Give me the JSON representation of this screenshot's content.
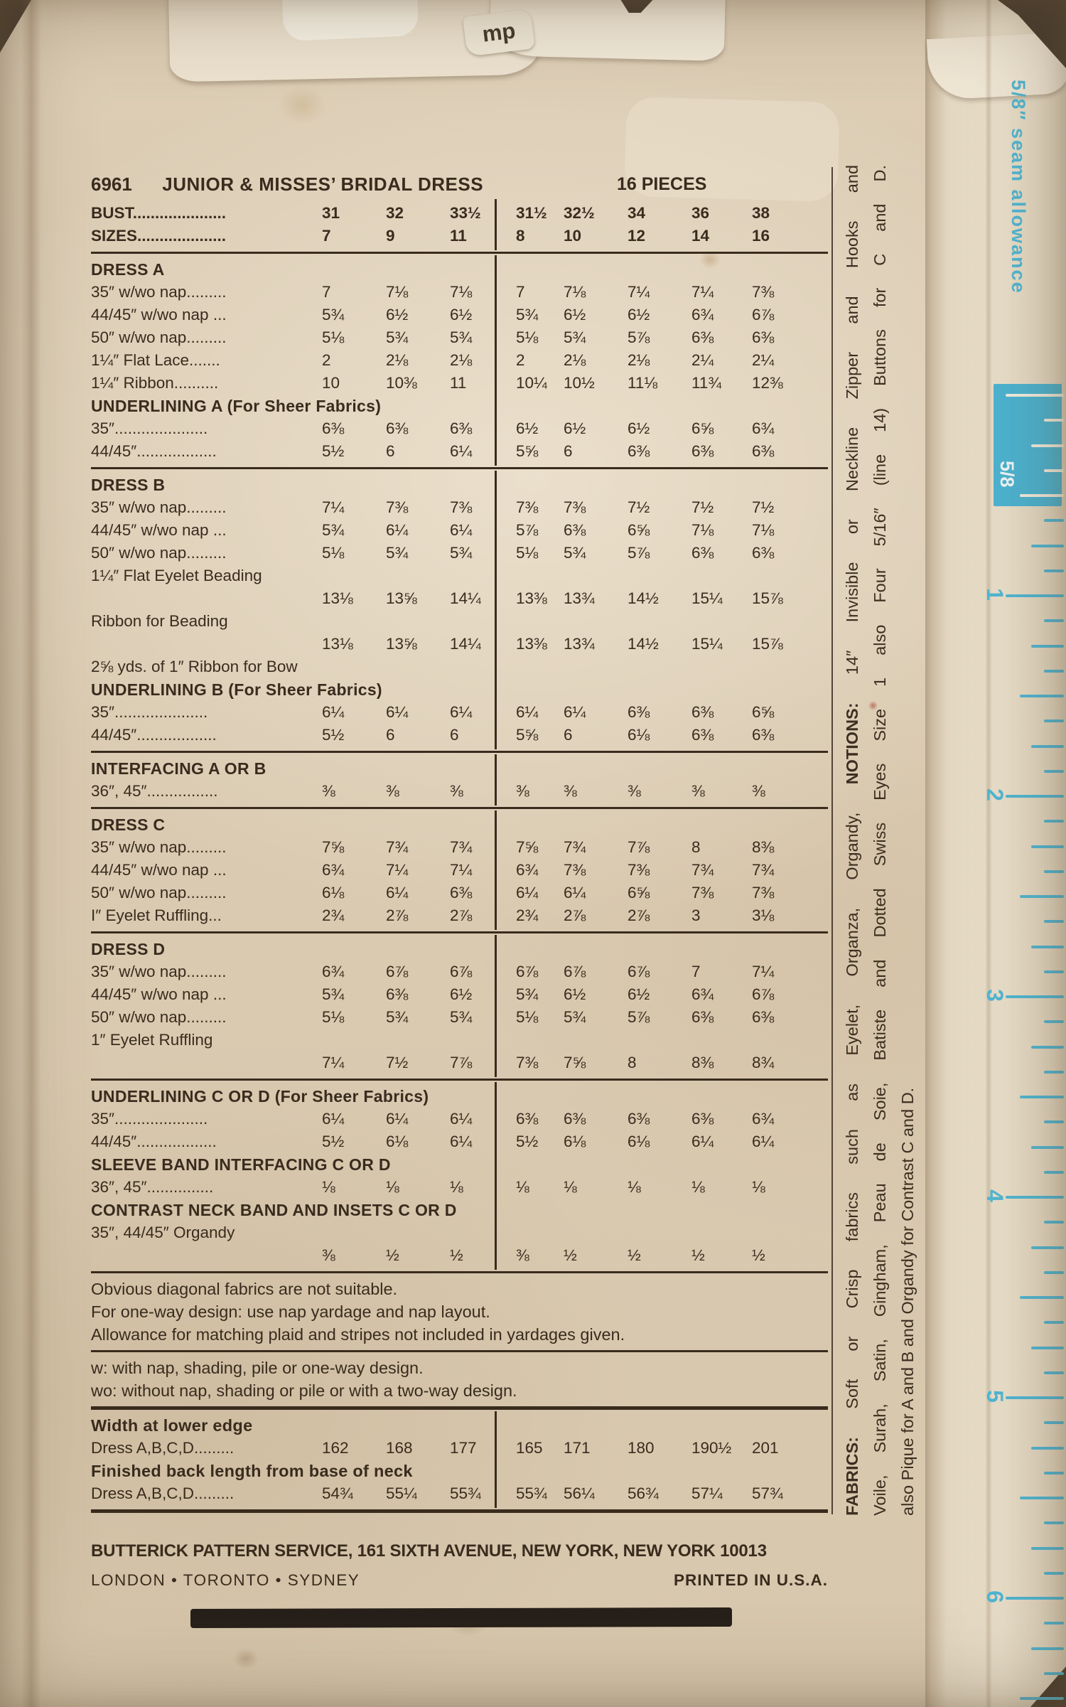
{
  "page": {
    "paper_color": "#dbccb4",
    "ink_color": "#392c1e",
    "ruler_blue": "#4fb6d3"
  },
  "header": {
    "pattern_number": "6961",
    "title": "JUNIOR & MISSES’ BRIDAL DRESS",
    "pieces": "16 PIECES"
  },
  "scrap_text": "mp",
  "table": {
    "sections": [
      {
        "divider": true,
        "rule_after": "normal",
        "rows": [
          {
            "t": "data",
            "b": true,
            "label": "BUST.....................",
            "v": [
              "31",
              "32",
              "33½",
              "31½",
              "32½",
              "34",
              "36",
              "38"
            ]
          },
          {
            "t": "data",
            "b": true,
            "label": "SIZES....................",
            "v": [
              "7",
              "9",
              "11",
              "8",
              "10",
              "12",
              "14",
              "16"
            ]
          }
        ]
      },
      {
        "divider": true,
        "rule_after": "normal",
        "rows": [
          {
            "t": "head",
            "label": "DRESS A"
          },
          {
            "t": "data",
            "label": "35″ w/wo nap.........",
            "v": [
              "7",
              "7⅛",
              "7⅛",
              "7",
              "7⅛",
              "7¼",
              "7¼",
              "7⅜"
            ]
          },
          {
            "t": "data",
            "label": "44/45″ w/wo nap ...",
            "v": [
              "5¾",
              "6½",
              "6½",
              "5¾",
              "6½",
              "6½",
              "6¾",
              "6⅞"
            ]
          },
          {
            "t": "data",
            "label": "50″ w/wo nap.........",
            "v": [
              "5⅛",
              "5¾",
              "5¾",
              "5⅛",
              "5¾",
              "5⅞",
              "6⅜",
              "6⅜"
            ]
          },
          {
            "t": "data",
            "label": "1¼″ Flat Lace.......",
            "v": [
              "2",
              "2⅛",
              "2⅛",
              "2",
              "2⅛",
              "2⅛",
              "2¼",
              "2¼"
            ]
          },
          {
            "t": "data",
            "label": "1¼″ Ribbon..........",
            "v": [
              "10",
              "10⅜",
              "11",
              "10¼",
              "10½",
              "11⅛",
              "11¾",
              "12⅜"
            ]
          },
          {
            "t": "head",
            "label": "UNDERLINING A (For Sheer Fabrics)"
          },
          {
            "t": "data",
            "label": "35″.....................",
            "v": [
              "6⅜",
              "6⅜",
              "6⅜",
              "6½",
              "6½",
              "6½",
              "6⅝",
              "6¾"
            ]
          },
          {
            "t": "data",
            "label": "44/45″..................",
            "v": [
              "5½",
              "6",
              "6¼",
              "5⅝",
              "6",
              "6⅜",
              "6⅜",
              "6⅜"
            ]
          }
        ]
      },
      {
        "divider": true,
        "rule_after": "normal",
        "rows": [
          {
            "t": "head",
            "label": "DRESS B"
          },
          {
            "t": "data",
            "label": "35″ w/wo nap.........",
            "v": [
              "7¼",
              "7⅜",
              "7⅜",
              "7⅜",
              "7⅜",
              "7½",
              "7½",
              "7½"
            ]
          },
          {
            "t": "data",
            "label": "44/45″ w/wo nap ...",
            "v": [
              "5¾",
              "6¼",
              "6¼",
              "5⅞",
              "6⅜",
              "6⅝",
              "7⅛",
              "7⅛"
            ]
          },
          {
            "t": "data",
            "label": "50″ w/wo nap.........",
            "v": [
              "5⅛",
              "5¾",
              "5¾",
              "5⅛",
              "5¾",
              "5⅞",
              "6⅜",
              "6⅜"
            ]
          },
          {
            "t": "label",
            "label": "1¼″ Flat Eyelet Beading"
          },
          {
            "t": "values",
            "v": [
              "13⅛",
              "13⅝",
              "14¼",
              "13⅜",
              "13¾",
              "14½",
              "15¼",
              "15⅞"
            ]
          },
          {
            "t": "label",
            "label": "Ribbon for Beading"
          },
          {
            "t": "values",
            "v": [
              "13⅛",
              "13⅝",
              "14¼",
              "13⅜",
              "13¾",
              "14½",
              "15¼",
              "15⅞"
            ]
          },
          {
            "t": "label",
            "label": "2⅝ yds. of 1″ Ribbon for Bow"
          },
          {
            "t": "head",
            "label": "UNDERLINING B (For Sheer Fabrics)"
          },
          {
            "t": "data",
            "label": "35″.....................",
            "v": [
              "6¼",
              "6¼",
              "6¼",
              "6¼",
              "6¼",
              "6⅜",
              "6⅜",
              "6⅝"
            ]
          },
          {
            "t": "data",
            "label": "44/45″..................",
            "v": [
              "5½",
              "6",
              "6",
              "5⅝",
              "6",
              "6⅛",
              "6⅜",
              "6⅜"
            ]
          }
        ]
      },
      {
        "divider": true,
        "rule_after": "normal",
        "rows": [
          {
            "t": "head",
            "label": "INTERFACING A OR B"
          },
          {
            "t": "data",
            "label": "36″, 45″................",
            "v": [
              "⅜",
              "⅜",
              "⅜",
              "⅜",
              "⅜",
              "⅜",
              "⅜",
              "⅜"
            ]
          }
        ]
      },
      {
        "divider": true,
        "rule_after": "normal",
        "rows": [
          {
            "t": "head",
            "label": "DRESS C"
          },
          {
            "t": "data",
            "label": "35″ w/wo nap.........",
            "v": [
              "7⅝",
              "7¾",
              "7¾",
              "7⅝",
              "7¾",
              "7⅞",
              "8",
              "8⅜"
            ]
          },
          {
            "t": "data",
            "label": "44/45″ w/wo nap ...",
            "v": [
              "6¾",
              "7¼",
              "7¼",
              "6¾",
              "7⅜",
              "7⅜",
              "7¾",
              "7¾"
            ]
          },
          {
            "t": "data",
            "label": "50″ w/wo nap.........",
            "v": [
              "6⅛",
              "6¼",
              "6⅜",
              "6¼",
              "6¼",
              "6⅝",
              "7⅜",
              "7⅜"
            ]
          },
          {
            "t": "data",
            "label": "I″ Eyelet Ruffling...",
            "v": [
              "2¾",
              "2⅞",
              "2⅞",
              "2¾",
              "2⅞",
              "2⅞",
              "3",
              "3⅛"
            ]
          }
        ]
      },
      {
        "divider": true,
        "rule_after": "normal",
        "rows": [
          {
            "t": "head",
            "label": "DRESS D"
          },
          {
            "t": "data",
            "label": "35″ w/wo nap.........",
            "v": [
              "6¾",
              "6⅞",
              "6⅞",
              "6⅞",
              "6⅞",
              "6⅞",
              "7",
              "7¼"
            ]
          },
          {
            "t": "data",
            "label": "44/45″ w/wo nap ...",
            "v": [
              "5¾",
              "6⅜",
              "6½",
              "5¾",
              "6½",
              "6½",
              "6¾",
              "6⅞"
            ]
          },
          {
            "t": "data",
            "label": "50″ w/wo nap.........",
            "v": [
              "5⅛",
              "5¾",
              "5¾",
              "5⅛",
              "5¾",
              "5⅞",
              "6⅜",
              "6⅜"
            ]
          },
          {
            "t": "label",
            "label": "1″ Eyelet Ruffling"
          },
          {
            "t": "values",
            "v": [
              "7¼",
              "7½",
              "7⅞",
              "7⅜",
              "7⅝",
              "8",
              "8⅜",
              "8¾"
            ]
          }
        ]
      },
      {
        "divider": true,
        "rule_after": "normal",
        "rows": [
          {
            "t": "head",
            "label": "UNDERLINING C OR D (For Sheer Fabrics)"
          },
          {
            "t": "data",
            "label": "35″.....................",
            "v": [
              "6¼",
              "6¼",
              "6¼",
              "6⅜",
              "6⅜",
              "6⅜",
              "6⅜",
              "6¾"
            ]
          },
          {
            "t": "data",
            "label": "44/45″..................",
            "v": [
              "5½",
              "6⅛",
              "6¼",
              "5½",
              "6⅛",
              "6⅛",
              "6¼",
              "6¼"
            ]
          },
          {
            "t": "head",
            "label": "SLEEVE BAND INTERFACING C OR D"
          },
          {
            "t": "data",
            "label": "36″, 45″...............",
            "v": [
              "⅛",
              "⅛",
              "⅛",
              "⅛",
              "⅛",
              "⅛",
              "⅛",
              "⅛"
            ]
          },
          {
            "t": "head",
            "label": "CONTRAST NECK BAND AND INSETS C OR D"
          },
          {
            "t": "label",
            "label": "35″, 44/45″ Organdy"
          },
          {
            "t": "values",
            "v": [
              "⅜",
              "½",
              "½",
              "⅜",
              "½",
              "½",
              "½",
              "½"
            ]
          }
        ]
      },
      {
        "divider": false,
        "rule_after": "normal",
        "rows": [
          {
            "t": "note",
            "text": "Obvious diagonal fabrics are not suitable."
          },
          {
            "t": "note",
            "text": "For one-way design: use nap yardage and nap layout."
          },
          {
            "t": "note",
            "just": true,
            "text": "Allowance for matching plaid and stripes not included in yardages given."
          }
        ]
      },
      {
        "divider": false,
        "rule_after": "strong",
        "rows": [
          {
            "t": "note",
            "text": "w: with nap, shading, pile or one-way design."
          },
          {
            "t": "note",
            "text": "wo: without nap, shading or pile or with a two-way design."
          }
        ]
      },
      {
        "divider": true,
        "rule_after": "strong",
        "rows": [
          {
            "t": "head",
            "mc": true,
            "label": "Width at lower edge"
          },
          {
            "t": "data",
            "label": "Dress A,B,C,D.........",
            "v": [
              "162",
              "168",
              "177",
              "165",
              "171",
              "180",
              "190½",
              "201"
            ]
          },
          {
            "t": "head",
            "mc": true,
            "label": "Finished back length from base of neck"
          },
          {
            "t": "data",
            "label": "Dress A,B,C,D.........",
            "v": [
              "54¾",
              "55¼",
              "55¾",
              "55¾",
              "56¼",
              "56¾",
              "57¼",
              "57¾"
            ]
          }
        ]
      }
    ]
  },
  "footer": {
    "address": "BUTTERICK PATTERN SERVICE, 161 SIXTH AVENUE, NEW YORK, NEW YORK 10013",
    "cities": "LONDON  •  TORONTO  •  SYDNEY",
    "printed": "PRINTED IN U.S.A."
  },
  "margin": {
    "lines": [
      {
        "just": true,
        "segs": [
          {
            "text": "FABRICS:",
            "b": true
          },
          {
            "text": "Soft or Crisp fabrics such as Eyelet, Organza, Organdy,"
          },
          {
            "text": "NOTIONS:",
            "b": true
          },
          {
            "text": "14″ Invisible or Neckline Zipper and Hooks and"
          }
        ]
      },
      {
        "just": true,
        "segs": [
          {
            "text": "Voile, Surah, Satin, Gingham, Peau de Soie, Batiste and Dotted Swiss Eyes Size 1 also Four 5/16″ (line 14) Buttons for C and D."
          }
        ]
      },
      {
        "just": false,
        "segs": [
          {
            "text": "also Pique for A and B and Organdy for Contrast C and D."
          }
        ]
      }
    ]
  },
  "ruler": {
    "seam_text": "5/8″ seam allowance",
    "marker": "5/8",
    "numbers": [
      "1",
      "2",
      "3",
      "4",
      "5",
      "6"
    ]
  }
}
